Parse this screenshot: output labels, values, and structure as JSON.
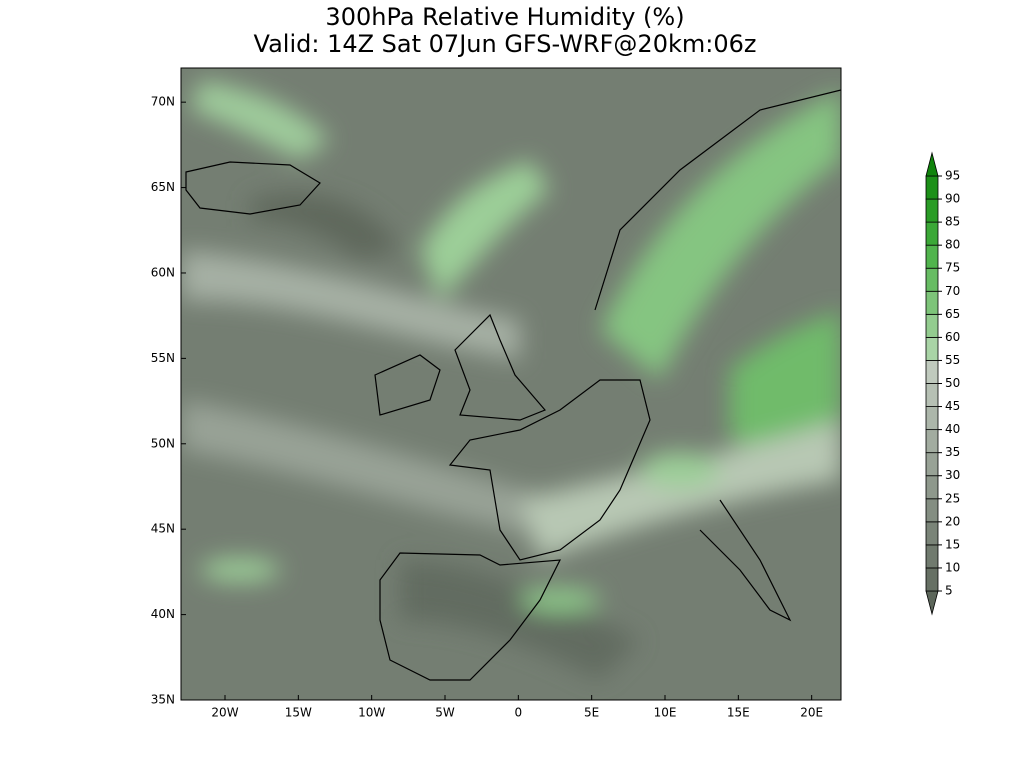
{
  "title": [
    "300hPa Relative Humidity (%)",
    "Valid: 14Z Sat 07Jun GFS-WRF@20km:06z"
  ],
  "map": {
    "lonlim": [
      -23,
      22
    ],
    "latlim": [
      35,
      72
    ],
    "lat_ticks": [
      {
        "value": 70,
        "label": "70N"
      },
      {
        "value": 65,
        "label": "65N"
      },
      {
        "value": 60,
        "label": "60N"
      },
      {
        "value": 55,
        "label": "55N"
      },
      {
        "value": 50,
        "label": "50N"
      },
      {
        "value": 45,
        "label": "45N"
      },
      {
        "value": 40,
        "label": "40N"
      },
      {
        "value": 35,
        "label": "35N"
      }
    ],
    "lon_ticks": [
      {
        "value": -20,
        "label": "20W"
      },
      {
        "value": -15,
        "label": "15W"
      },
      {
        "value": -10,
        "label": "10W"
      },
      {
        "value": -5,
        "label": "5W"
      },
      0,
      {
        "value": 5,
        "label": "5E"
      },
      {
        "value": 10,
        "label": "10E"
      },
      {
        "value": 15,
        "label": "15E"
      },
      {
        "value": 20,
        "label": "20E"
      }
    ]
  },
  "colorbar": {
    "levels": [
      5,
      10,
      15,
      20,
      25,
      30,
      35,
      40,
      45,
      50,
      55,
      60,
      65,
      70,
      75,
      80,
      85,
      90,
      95
    ],
    "colors": [
      "#5c665a",
      "#667064",
      "#707a6e",
      "#7a8478",
      "#848e82",
      "#8e988c",
      "#98a296",
      "#a2aca0",
      "#acb6aa",
      "#b6c0b4",
      "#c0cabe",
      "#a9d4a6",
      "#93cc8f",
      "#7dc479",
      "#67bc63",
      "#51b44d",
      "#3ba837",
      "#2a9c26",
      "#1c9018",
      "#10840c"
    ]
  }
}
